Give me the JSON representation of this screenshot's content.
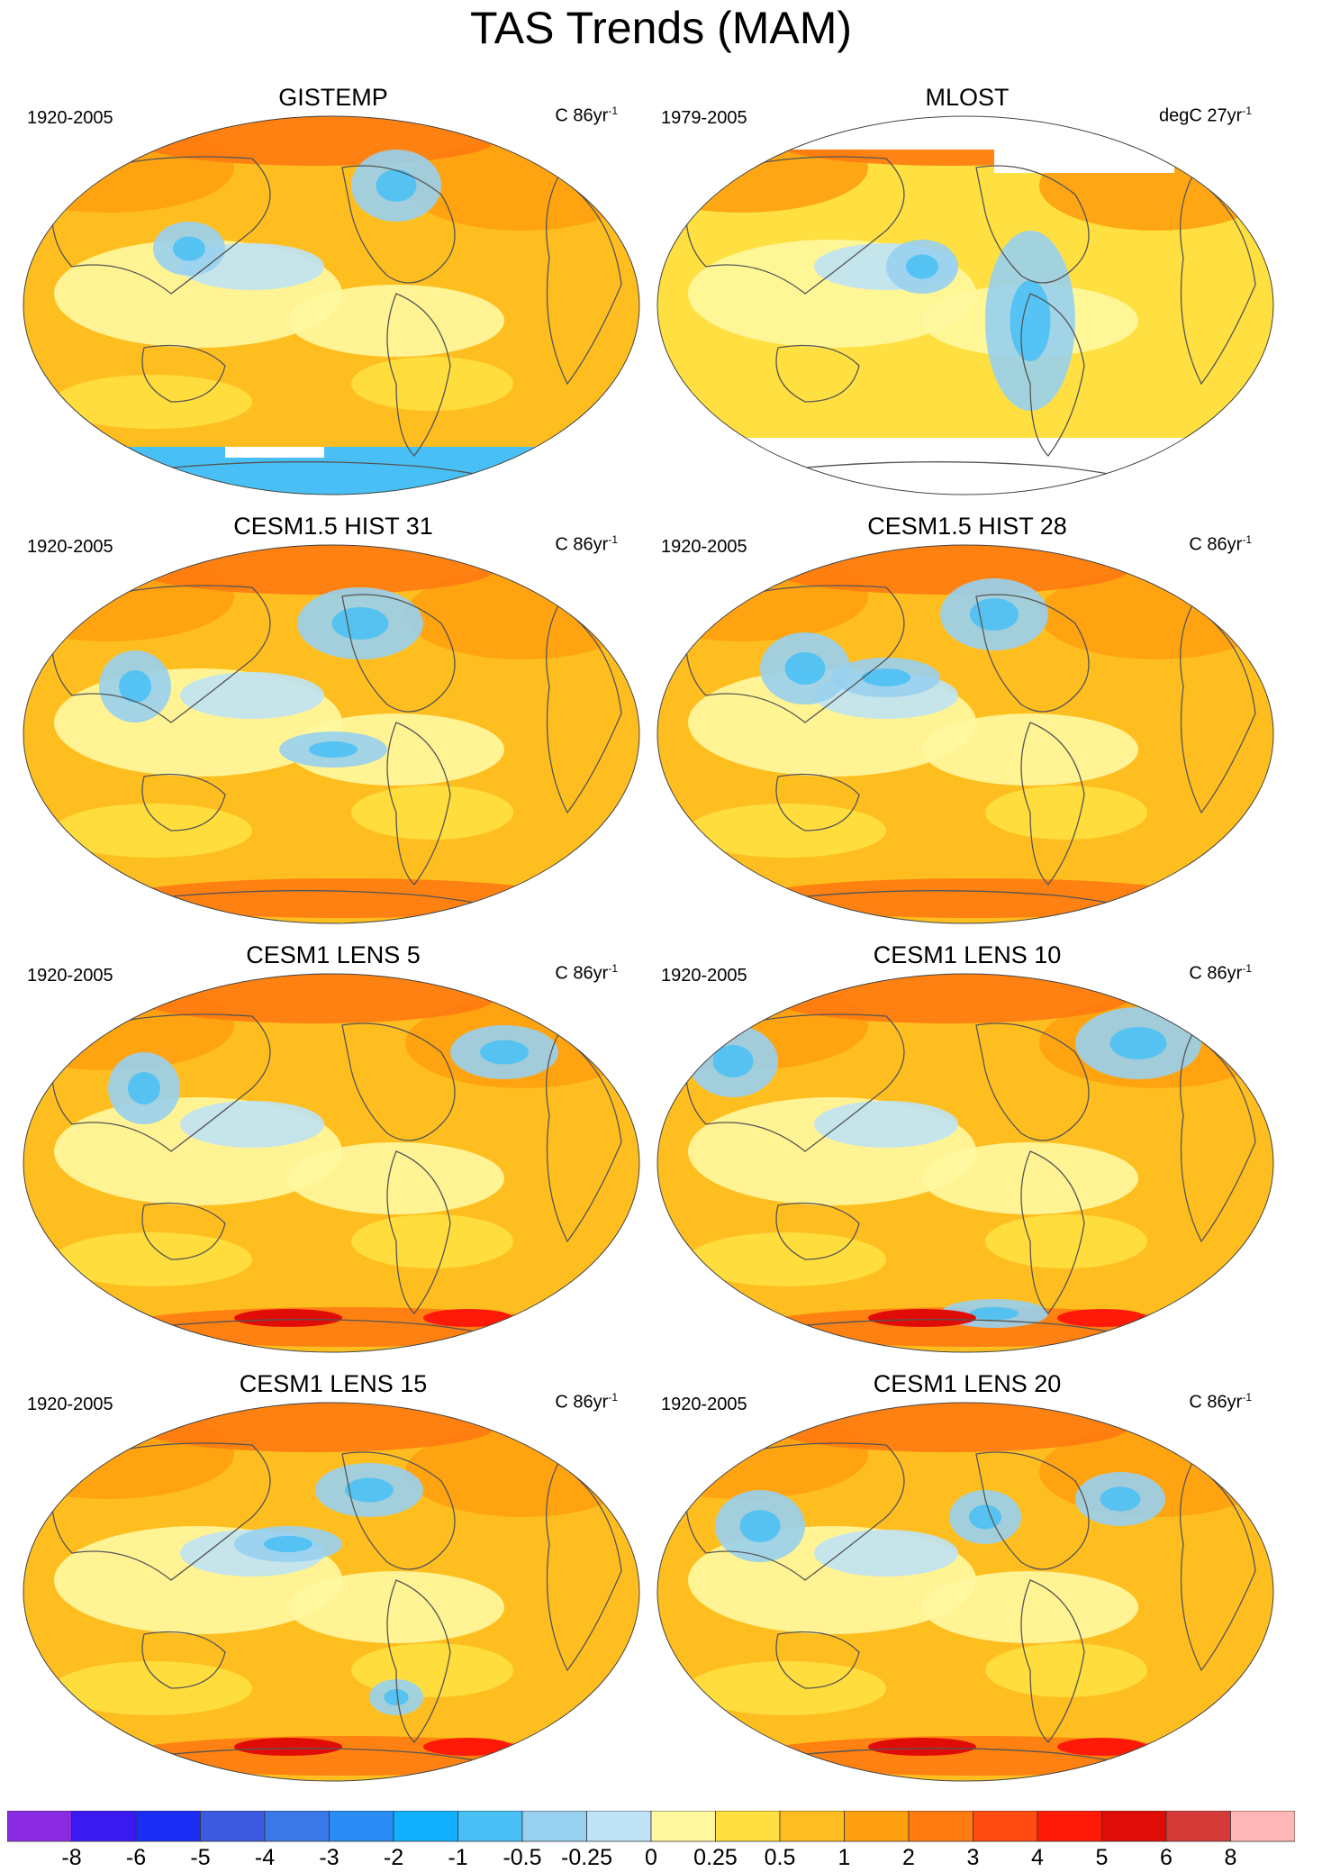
{
  "title": "TAS Trends (MAM)",
  "panels": [
    {
      "title": "GISTEMP",
      "period": "1920-2005",
      "unit": "C 86yr",
      "unit_exp": "-1"
    },
    {
      "title": "MLOST",
      "period": "1979-2005",
      "unit": "degC 27yr",
      "unit_exp": "-1"
    },
    {
      "title": "CESM1.5 HIST 31",
      "period": "1920-2005",
      "unit": "C 86yr",
      "unit_exp": "-1"
    },
    {
      "title": "CESM1.5 HIST 28",
      "period": "1920-2005",
      "unit": "C 86yr",
      "unit_exp": "-1"
    },
    {
      "title": "CESM1 LENS 5",
      "period": "1920-2005",
      "unit": "C 86yr",
      "unit_exp": "-1"
    },
    {
      "title": "CESM1 LENS 10",
      "period": "1920-2005",
      "unit": "C 86yr",
      "unit_exp": "-1"
    },
    {
      "title": "CESM1 LENS 15",
      "period": "1920-2005",
      "unit": "C 86yr",
      "unit_exp": "-1"
    },
    {
      "title": "CESM1 LENS 20",
      "period": "1920-2005",
      "unit": "C 86yr",
      "unit_exp": "-1"
    }
  ],
  "colorbar": {
    "labels": [
      "-8",
      "-6",
      "-5",
      "-4",
      "-3",
      "-2",
      "-1",
      "-0.5",
      "-0.25",
      "0",
      "0.25",
      "0.5",
      "1",
      "2",
      "3",
      "4",
      "5",
      "6",
      "8"
    ],
    "colors": [
      "#8a2be2",
      "#3a1af0",
      "#1a2df5",
      "#3c5ae0",
      "#3a78e8",
      "#2a8cf5",
      "#12b0ff",
      "#48c0f5",
      "#98d0f0",
      "#bfe3f5",
      "#fff8a0",
      "#ffe040",
      "#ffbe20",
      "#ffa010",
      "#ff7a10",
      "#ff4a10",
      "#ff1a08",
      "#e00c08",
      "#d43a38",
      "#ffb6b6"
    ]
  }
}
